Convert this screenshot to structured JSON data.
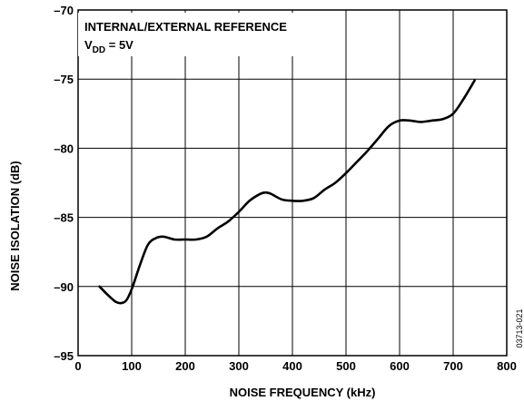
{
  "chart_data": {
    "type": "line",
    "title": "",
    "xlabel": "NOISE FREQUENCY (kHz)",
    "ylabel": "NOISE ISOLATION (dB)",
    "xlim": [
      0,
      800
    ],
    "ylim": [
      -95,
      -70
    ],
    "xticks": [
      0,
      100,
      200,
      300,
      400,
      500,
      600,
      700,
      800
    ],
    "yticks": [
      -95,
      -90,
      -85,
      -80,
      -75,
      -70
    ],
    "x_tick_labels": [
      "0",
      "100",
      "200",
      "300",
      "400",
      "500",
      "600",
      "700",
      "800"
    ],
    "y_tick_labels": [
      "–95",
      "–90",
      "–85",
      "–80",
      "–75",
      "–70"
    ],
    "grid": true,
    "annotation": {
      "line1": "INTERNAL/EXTERNAL REFERENCE",
      "vdd_main": "V",
      "vdd_sub": "DD",
      "vdd_rest": " = 5V"
    },
    "figure_id": "03713-021",
    "series": [
      {
        "x": [
          40,
          55,
          70,
          80,
          90,
          100,
          115,
          130,
          145,
          160,
          180,
          200,
          220,
          240,
          260,
          280,
          300,
          320,
          340,
          350,
          360,
          380,
          400,
          420,
          440,
          460,
          480,
          500,
          520,
          540,
          560,
          580,
          600,
          620,
          640,
          660,
          680,
          700,
          720,
          740
        ],
        "y": [
          -90.0,
          -90.6,
          -91.1,
          -91.2,
          -91.0,
          -90.2,
          -88.5,
          -87.0,
          -86.5,
          -86.4,
          -86.6,
          -86.6,
          -86.6,
          -86.4,
          -85.8,
          -85.3,
          -84.6,
          -83.8,
          -83.3,
          -83.2,
          -83.3,
          -83.7,
          -83.8,
          -83.8,
          -83.6,
          -83.0,
          -82.5,
          -81.8,
          -81.0,
          -80.2,
          -79.3,
          -78.4,
          -78.0,
          -78.0,
          -78.1,
          -78.0,
          -77.9,
          -77.5,
          -76.4,
          -75.1
        ],
        "color": "#000000"
      }
    ]
  }
}
